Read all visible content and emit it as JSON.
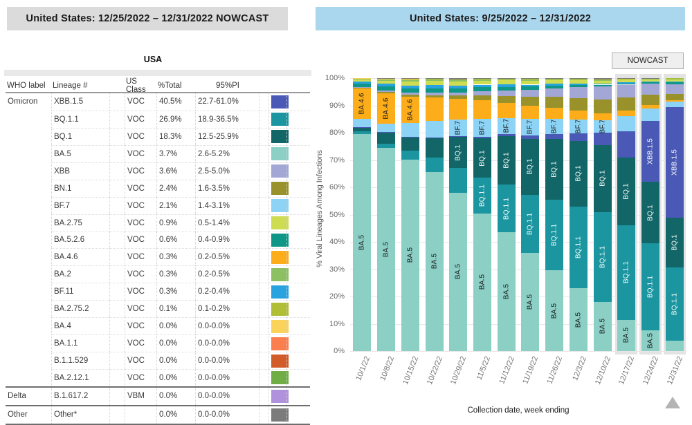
{
  "left_panel": {
    "header": "United States: 12/25/2022 – 12/31/2022 NOWCAST",
    "table_title": "USA",
    "columns": [
      "WHO label",
      "Lineage #",
      "US Class",
      "%Total",
      "95%PI"
    ],
    "rows": [
      {
        "who": "Omicron",
        "lineage": "XBB.1.5",
        "us_class": "VOC",
        "total": "40.5%",
        "pi": "22.7-61.0%",
        "color": "#4A59B5",
        "section": false
      },
      {
        "who": "",
        "lineage": "BQ.1.1",
        "us_class": "VOC",
        "total": "26.9%",
        "pi": "18.9-36.5%",
        "color": "#1B96A1",
        "section": false
      },
      {
        "who": "",
        "lineage": "BQ.1",
        "us_class": "VOC",
        "total": "18.3%",
        "pi": "12.5-25.9%",
        "color": "#136668",
        "section": false
      },
      {
        "who": "",
        "lineage": "BA.5",
        "us_class": "VOC",
        "total": "3.7%",
        "pi": "2.6-5.2%",
        "color": "#8BCFC5",
        "section": false
      },
      {
        "who": "",
        "lineage": "XBB",
        "us_class": "VOC",
        "total": "3.6%",
        "pi": "2.5-5.0%",
        "color": "#A2A7D6",
        "section": false
      },
      {
        "who": "",
        "lineage": "BN.1",
        "us_class": "VOC",
        "total": "2.4%",
        "pi": "1.6-3.5%",
        "color": "#99922A",
        "section": false
      },
      {
        "who": "",
        "lineage": "BF.7",
        "us_class": "VOC",
        "total": "2.1%",
        "pi": "1.4-3.1%",
        "color": "#8CD3F5",
        "section": false
      },
      {
        "who": "",
        "lineage": "BA.2.75",
        "us_class": "VOC",
        "total": "0.9%",
        "pi": "0.5-1.4%",
        "color": "#CEDC52",
        "section": false
      },
      {
        "who": "",
        "lineage": "BA.5.2.6",
        "us_class": "VOC",
        "total": "0.6%",
        "pi": "0.4-0.9%",
        "color": "#0E9787",
        "section": false
      },
      {
        "who": "",
        "lineage": "BA.4.6",
        "us_class": "VOC",
        "total": "0.3%",
        "pi": "0.2-0.5%",
        "color": "#FCAD19",
        "section": false
      },
      {
        "who": "",
        "lineage": "BA.2",
        "us_class": "VOC",
        "total": "0.3%",
        "pi": "0.2-0.5%",
        "color": "#8CC063",
        "section": false
      },
      {
        "who": "",
        "lineage": "BF.11",
        "us_class": "VOC",
        "total": "0.3%",
        "pi": "0.2-0.4%",
        "color": "#29A3DF",
        "section": false
      },
      {
        "who": "",
        "lineage": "BA.2.75.2",
        "us_class": "VOC",
        "total": "0.1%",
        "pi": "0.1-0.2%",
        "color": "#AFBE35",
        "section": false
      },
      {
        "who": "",
        "lineage": "BA.4",
        "us_class": "VOC",
        "total": "0.0%",
        "pi": "0.0-0.0%",
        "color": "#FBD25A",
        "section": false
      },
      {
        "who": "",
        "lineage": "BA.1.1",
        "us_class": "VOC",
        "total": "0.0%",
        "pi": "0.0-0.0%",
        "color": "#FA7E4E",
        "section": false
      },
      {
        "who": "",
        "lineage": "B.1.1.529",
        "us_class": "VOC",
        "total": "0.0%",
        "pi": "0.0-0.0%",
        "color": "#D25C29",
        "section": false
      },
      {
        "who": "",
        "lineage": "BA.2.12.1",
        "us_class": "VOC",
        "total": "0.0%",
        "pi": "0.0-0.0%",
        "color": "#70AD44",
        "section": false
      },
      {
        "who": "Delta",
        "lineage": "B.1.617.2",
        "us_class": "VBM",
        "total": "0.0%",
        "pi": "0.0-0.0%",
        "color": "#B091DC",
        "section": true
      },
      {
        "who": "Other",
        "lineage": "Other*",
        "us_class": "",
        "total": "0.0%",
        "pi": "0.0-0.0%",
        "color": "#7B7B7B",
        "section": true
      }
    ]
  },
  "right_panel": {
    "header": "United States: 9/25/2022 – 12/31/2022",
    "nowcast_label": "NOWCAST"
  },
  "chart_data": {
    "type": "bar",
    "stacked": true,
    "title": "United States: 9/25/2022 – 12/31/2022",
    "xlabel": "Collection date, week ending",
    "ylabel": "% Viral Lineages Among Infections",
    "ylim": [
      0,
      100
    ],
    "grid": true,
    "y_ticks": [
      "0%",
      "10%",
      "20%",
      "30%",
      "40%",
      "50%",
      "60%",
      "70%",
      "80%",
      "90%",
      "100%"
    ],
    "categories": [
      "10/1/22",
      "10/8/22",
      "10/15/22",
      "10/22/22",
      "10/29/22",
      "11/5/22",
      "11/12/22",
      "11/19/22",
      "11/26/22",
      "12/3/22",
      "12/10/22",
      "12/17/22",
      "12/24/22",
      "12/31/22"
    ],
    "nowcast_bar_indices": [
      11,
      12,
      13
    ],
    "series": [
      {
        "name": "BA.5",
        "color": "#8BCFC5",
        "values": [
          79.5,
          74.5,
          70.2,
          65.7,
          58.0,
          50.5,
          43.5,
          36.0,
          29.5,
          23.0,
          18.0,
          11.5,
          7.5,
          3.7
        ]
      },
      {
        "name": "BQ.1.1",
        "color": "#1B96A1",
        "values": [
          1.0,
          1.5,
          3.3,
          5.3,
          9.0,
          13.0,
          17.5,
          21.3,
          26.0,
          30.0,
          33.0,
          34.5,
          32.0,
          26.9
        ]
      },
      {
        "name": "BQ.1",
        "color": "#136668",
        "values": [
          1.5,
          4.0,
          4.8,
          7.0,
          11.5,
          14.5,
          17.8,
          20.5,
          22.3,
          24.0,
          24.5,
          25.0,
          22.5,
          18.3
        ]
      },
      {
        "name": "XBB.1.5",
        "color": "#4A59B5",
        "values": [
          0.1,
          0.2,
          0.2,
          0.3,
          0.3,
          0.5,
          0.8,
          1.2,
          1.8,
          2.8,
          4.5,
          9.5,
          22.4,
          40.5
        ]
      },
      {
        "name": "BF.7",
        "color": "#8CD3F5",
        "values": [
          3.0,
          3.2,
          5.0,
          6.0,
          6.0,
          6.5,
          5.8,
          6.0,
          5.5,
          5.0,
          4.5,
          5.5,
          4.5,
          2.1
        ]
      },
      {
        "name": "BA.4.6",
        "color": "#FCAD19",
        "values": [
          11.0,
          11.0,
          9.7,
          8.5,
          7.5,
          7.0,
          5.5,
          5.0,
          4.0,
          3.2,
          2.6,
          2.0,
          1.2,
          0.3
        ]
      },
      {
        "name": "BN.1",
        "color": "#99922A",
        "values": [
          0.3,
          0.5,
          0.7,
          1.0,
          1.3,
          1.8,
          2.6,
          3.2,
          4.0,
          4.6,
          5.0,
          4.8,
          3.8,
          2.4
        ]
      },
      {
        "name": "XBB",
        "color": "#A2A7D6",
        "values": [
          0.3,
          0.5,
          0.7,
          0.8,
          1.0,
          1.4,
          1.9,
          2.5,
          3.2,
          4.0,
          4.8,
          4.8,
          4.2,
          3.6
        ]
      },
      {
        "name": "BA.5.2.6",
        "color": "#0E9787",
        "values": [
          1.2,
          1.5,
          1.6,
          1.7,
          1.6,
          1.5,
          1.4,
          1.2,
          1.0,
          0.9,
          0.7,
          0.5,
          0.4,
          0.6
        ]
      },
      {
        "name": "BF.11",
        "color": "#29A3DF",
        "values": [
          0.8,
          1.0,
          1.1,
          1.2,
          1.0,
          0.9,
          0.8,
          0.7,
          0.6,
          0.5,
          0.4,
          0.3,
          0.2,
          0.3
        ]
      },
      {
        "name": "BA.2.75",
        "color": "#CEDC52",
        "values": [
          0.8,
          1.2,
          1.5,
          1.6,
          1.6,
          1.5,
          1.6,
          1.5,
          1.4,
          1.3,
          1.1,
          1.0,
          0.8,
          0.9
        ]
      },
      {
        "name": "BA.2",
        "color": "#8CC063",
        "values": [
          0.2,
          0.3,
          0.4,
          0.4,
          0.4,
          0.4,
          0.4,
          0.4,
          0.3,
          0.3,
          0.3,
          0.3,
          0.3,
          0.3
        ]
      },
      {
        "name": "BA.2.75.2",
        "color": "#AFBE35",
        "values": [
          0.2,
          0.3,
          0.4,
          0.4,
          0.3,
          0.3,
          0.2,
          0.2,
          0.2,
          0.2,
          0.2,
          0.1,
          0.1,
          0.1
        ]
      },
      {
        "name": "BA.4",
        "color": "#FBD25A",
        "values": [
          0.1,
          0.1,
          0.1,
          0,
          0,
          0,
          0,
          0,
          0,
          0,
          0,
          0,
          0,
          0
        ]
      },
      {
        "name": "BA.1.1",
        "color": "#FA7E4E",
        "values": [
          0,
          0,
          0,
          0,
          0,
          0,
          0,
          0,
          0,
          0,
          0,
          0,
          0,
          0
        ]
      },
      {
        "name": "B.1.1.529",
        "color": "#D25C29",
        "values": [
          0,
          0,
          0,
          0,
          0,
          0,
          0,
          0,
          0,
          0,
          0,
          0,
          0,
          0
        ]
      },
      {
        "name": "BA.2.12.1",
        "color": "#70AD44",
        "values": [
          0,
          0,
          0,
          0,
          0,
          0,
          0,
          0,
          0,
          0,
          0,
          0,
          0,
          0
        ]
      },
      {
        "name": "B.1.617.2",
        "color": "#B091DC",
        "values": [
          0,
          0,
          0,
          0,
          0,
          0,
          0,
          0,
          0,
          0,
          0,
          0,
          0,
          0
        ]
      },
      {
        "name": "Other",
        "color": "#7B7B7B",
        "values": [
          0.0,
          0.2,
          0.3,
          0.1,
          0.5,
          0.2,
          0.2,
          0.3,
          0.2,
          0.2,
          0.4,
          0.2,
          0.1,
          0.0
        ]
      }
    ],
    "bar_text_labels": [
      {
        "series": "BA.5",
        "color": "#1a1a1a",
        "bars": [
          0,
          1,
          2,
          3,
          4,
          5,
          6,
          7,
          8,
          9,
          10,
          11,
          12
        ]
      },
      {
        "series": "BQ.1.1",
        "color": "#ffffff",
        "bars": [
          5,
          6,
          7,
          8,
          9,
          10,
          11,
          12,
          13
        ]
      },
      {
        "series": "BQ.1",
        "color": "#ffffff",
        "bars": [
          4,
          5,
          6,
          7,
          8,
          9,
          10,
          11,
          12,
          13
        ]
      },
      {
        "series": "XBB.1.5",
        "color": "#ffffff",
        "bars": [
          12,
          13
        ]
      },
      {
        "series": "BF.7",
        "color": "#1a1a1a",
        "bars": [
          4,
          5,
          6,
          7,
          8,
          9,
          10
        ]
      },
      {
        "series": "BA.4.6",
        "color": "#1a1a1a",
        "bars": [
          0,
          1,
          2
        ]
      }
    ],
    "legend_position": "left-table"
  }
}
